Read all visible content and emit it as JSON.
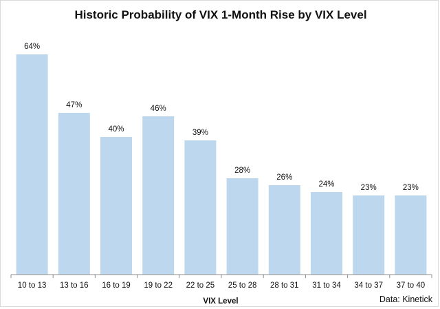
{
  "chart_data": {
    "type": "bar",
    "title": "Historic Probability of VIX 1-Month Rise by VIX Level",
    "xlabel": "VIX Level",
    "ylabel": "",
    "source": "Data: Kinetick",
    "categories": [
      "10 to 13",
      "13 to 16",
      "16 to 19",
      "19 to 22",
      "22 to 25",
      "25 to 28",
      "28 to 31",
      "31 to 34",
      "34 to 37",
      "37 to 40"
    ],
    "values": [
      64,
      47,
      40,
      46,
      39,
      28,
      26,
      24,
      23,
      23
    ],
    "data_labels": [
      "64%",
      "47%",
      "40%",
      "46%",
      "39%",
      "28%",
      "26%",
      "24%",
      "23%",
      "23%"
    ],
    "bar_color": "#bdd7ee",
    "axis_color": "#8c8c8c",
    "grid": false,
    "legend": "none"
  }
}
